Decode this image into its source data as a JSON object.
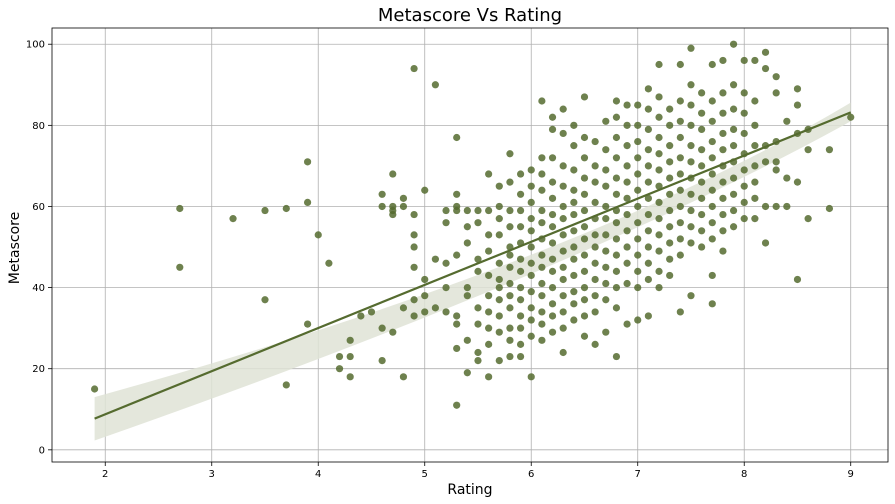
{
  "chart_data": {
    "type": "scatter",
    "title": "Metascore Vs Rating",
    "xlabel": "Rating",
    "ylabel": "Metascore",
    "xlim": [
      1.5,
      9.35
    ],
    "ylim": [
      -3,
      104
    ],
    "xticks": [
      2,
      3,
      4,
      5,
      6,
      7,
      8,
      9
    ],
    "yticks": [
      0,
      20,
      40,
      60,
      80,
      100
    ],
    "grid": true,
    "point_color": "#556b2f",
    "line_color": "#556b2f",
    "ci_color": "#dfe3d6",
    "regression": {
      "x_start": 1.9,
      "y_start": 7.7,
      "x_end": 9.0,
      "y_end": 83.2,
      "ci_start": [
        2.3,
        13.0
      ],
      "ci_mid": [
        44.6,
        46.4
      ],
      "ci_end": [
        81.0,
        85.6
      ],
      "x_mid": 6.5
    },
    "points": [
      [
        1.9,
        15
      ],
      [
        2.7,
        59.5
      ],
      [
        2.7,
        45
      ],
      [
        3.2,
        57
      ],
      [
        3.5,
        59
      ],
      [
        3.5,
        37
      ],
      [
        3.7,
        59.5
      ],
      [
        3.7,
        16
      ],
      [
        3.9,
        71
      ],
      [
        3.9,
        61
      ],
      [
        3.9,
        31
      ],
      [
        4.0,
        53
      ],
      [
        4.1,
        46
      ],
      [
        4.2,
        23
      ],
      [
        4.2,
        20
      ],
      [
        4.3,
        27
      ],
      [
        4.3,
        23
      ],
      [
        4.3,
        18
      ],
      [
        4.4,
        33
      ],
      [
        4.5,
        34
      ],
      [
        4.6,
        63
      ],
      [
        4.6,
        60
      ],
      [
        4.6,
        30
      ],
      [
        4.6,
        22
      ],
      [
        4.7,
        68
      ],
      [
        4.7,
        60
      ],
      [
        4.7,
        59
      ],
      [
        4.7,
        58
      ],
      [
        4.7,
        29
      ],
      [
        4.8,
        62
      ],
      [
        4.8,
        60
      ],
      [
        4.8,
        35
      ],
      [
        4.8,
        18
      ],
      [
        4.9,
        94
      ],
      [
        4.9,
        58
      ],
      [
        4.9,
        53
      ],
      [
        4.9,
        50
      ],
      [
        4.9,
        45
      ],
      [
        4.9,
        37
      ],
      [
        4.9,
        33
      ],
      [
        5.0,
        64
      ],
      [
        5.0,
        42
      ],
      [
        5.0,
        38
      ],
      [
        5.0,
        34
      ],
      [
        5.1,
        90
      ],
      [
        5.1,
        47
      ],
      [
        5.1,
        35
      ],
      [
        5.2,
        59
      ],
      [
        5.2,
        56
      ],
      [
        5.2,
        46
      ],
      [
        5.2,
        40
      ],
      [
        5.2,
        34
      ],
      [
        5.3,
        77
      ],
      [
        5.3,
        63
      ],
      [
        5.3,
        60
      ],
      [
        5.3,
        59
      ],
      [
        5.3,
        48
      ],
      [
        5.3,
        33
      ],
      [
        5.3,
        31
      ],
      [
        5.3,
        25
      ],
      [
        5.3,
        11
      ],
      [
        5.4,
        59
      ],
      [
        5.4,
        55
      ],
      [
        5.4,
        51
      ],
      [
        5.4,
        40
      ],
      [
        5.4,
        38
      ],
      [
        5.4,
        27
      ],
      [
        5.4,
        19
      ],
      [
        5.5,
        59
      ],
      [
        5.5,
        56
      ],
      [
        5.5,
        47
      ],
      [
        5.5,
        44
      ],
      [
        5.5,
        35
      ],
      [
        5.5,
        31
      ],
      [
        5.5,
        24
      ],
      [
        5.5,
        22
      ],
      [
        5.6,
        68
      ],
      [
        5.6,
        59
      ],
      [
        5.6,
        53
      ],
      [
        5.6,
        49
      ],
      [
        5.6,
        43
      ],
      [
        5.6,
        38
      ],
      [
        5.6,
        34
      ],
      [
        5.6,
        30
      ],
      [
        5.6,
        26
      ],
      [
        5.6,
        18
      ],
      [
        5.7,
        65
      ],
      [
        5.7,
        60
      ],
      [
        5.7,
        57
      ],
      [
        5.7,
        53
      ],
      [
        5.7,
        46
      ],
      [
        5.7,
        42
      ],
      [
        5.7,
        40
      ],
      [
        5.7,
        37
      ],
      [
        5.7,
        33
      ],
      [
        5.7,
        29
      ],
      [
        5.7,
        22
      ],
      [
        5.8,
        73
      ],
      [
        5.8,
        66
      ],
      [
        5.8,
        59
      ],
      [
        5.8,
        55
      ],
      [
        5.8,
        50
      ],
      [
        5.8,
        48
      ],
      [
        5.8,
        45
      ],
      [
        5.8,
        41
      ],
      [
        5.8,
        38
      ],
      [
        5.8,
        35
      ],
      [
        5.8,
        30
      ],
      [
        5.8,
        27
      ],
      [
        5.8,
        23
      ],
      [
        5.9,
        68
      ],
      [
        5.9,
        63
      ],
      [
        5.9,
        59
      ],
      [
        5.9,
        55
      ],
      [
        5.9,
        51
      ],
      [
        5.9,
        47
      ],
      [
        5.9,
        44
      ],
      [
        5.9,
        40
      ],
      [
        5.9,
        37
      ],
      [
        5.9,
        33
      ],
      [
        5.9,
        30
      ],
      [
        5.9,
        26
      ],
      [
        5.9,
        23
      ],
      [
        6.0,
        69
      ],
      [
        6.0,
        65
      ],
      [
        6.0,
        61
      ],
      [
        6.0,
        57
      ],
      [
        6.0,
        54
      ],
      [
        6.0,
        50
      ],
      [
        6.0,
        46
      ],
      [
        6.0,
        43
      ],
      [
        6.0,
        39
      ],
      [
        6.0,
        35
      ],
      [
        6.0,
        32
      ],
      [
        6.0,
        28
      ],
      [
        6.0,
        18
      ],
      [
        6.1,
        86
      ],
      [
        6.1,
        72
      ],
      [
        6.1,
        68
      ],
      [
        6.1,
        64
      ],
      [
        6.1,
        59
      ],
      [
        6.1,
        56
      ],
      [
        6.1,
        52
      ],
      [
        6.1,
        48
      ],
      [
        6.1,
        45
      ],
      [
        6.1,
        41
      ],
      [
        6.1,
        38
      ],
      [
        6.1,
        34
      ],
      [
        6.1,
        31
      ],
      [
        6.1,
        27
      ],
      [
        6.2,
        82
      ],
      [
        6.2,
        79
      ],
      [
        6.2,
        72
      ],
      [
        6.2,
        66
      ],
      [
        6.2,
        62
      ],
      [
        6.2,
        58
      ],
      [
        6.2,
        55
      ],
      [
        6.2,
        51
      ],
      [
        6.2,
        47
      ],
      [
        6.2,
        44
      ],
      [
        6.2,
        40
      ],
      [
        6.2,
        36
      ],
      [
        6.2,
        33
      ],
      [
        6.2,
        29
      ],
      [
        6.3,
        84
      ],
      [
        6.3,
        78
      ],
      [
        6.3,
        70
      ],
      [
        6.3,
        65
      ],
      [
        6.3,
        60
      ],
      [
        6.3,
        57
      ],
      [
        6.3,
        53
      ],
      [
        6.3,
        49
      ],
      [
        6.3,
        45
      ],
      [
        6.3,
        42
      ],
      [
        6.3,
        38
      ],
      [
        6.3,
        34
      ],
      [
        6.3,
        30
      ],
      [
        6.3,
        24
      ],
      [
        6.4,
        80
      ],
      [
        6.4,
        75
      ],
      [
        6.4,
        69
      ],
      [
        6.4,
        64
      ],
      [
        6.4,
        61
      ],
      [
        6.4,
        58
      ],
      [
        6.4,
        54
      ],
      [
        6.4,
        50
      ],
      [
        6.4,
        47
      ],
      [
        6.4,
        43
      ],
      [
        6.4,
        39
      ],
      [
        6.4,
        36
      ],
      [
        6.4,
        32
      ],
      [
        6.5,
        87
      ],
      [
        6.5,
        77
      ],
      [
        6.5,
        72
      ],
      [
        6.5,
        67
      ],
      [
        6.5,
        63
      ],
      [
        6.5,
        59
      ],
      [
        6.5,
        55
      ],
      [
        6.5,
        52
      ],
      [
        6.5,
        48
      ],
      [
        6.5,
        44
      ],
      [
        6.5,
        40
      ],
      [
        6.5,
        37
      ],
      [
        6.5,
        33
      ],
      [
        6.5,
        28
      ],
      [
        6.6,
        76
      ],
      [
        6.6,
        70
      ],
      [
        6.6,
        66
      ],
      [
        6.6,
        61
      ],
      [
        6.6,
        57
      ],
      [
        6.6,
        53
      ],
      [
        6.6,
        50
      ],
      [
        6.6,
        46
      ],
      [
        6.6,
        42
      ],
      [
        6.6,
        38
      ],
      [
        6.6,
        34
      ],
      [
        6.6,
        26
      ],
      [
        6.7,
        81
      ],
      [
        6.7,
        74
      ],
      [
        6.7,
        69
      ],
      [
        6.7,
        65
      ],
      [
        6.7,
        60
      ],
      [
        6.7,
        57
      ],
      [
        6.7,
        53
      ],
      [
        6.7,
        49
      ],
      [
        6.7,
        45
      ],
      [
        6.7,
        41
      ],
      [
        6.7,
        37
      ],
      [
        6.7,
        29
      ],
      [
        6.8,
        86
      ],
      [
        6.8,
        82
      ],
      [
        6.8,
        77
      ],
      [
        6.8,
        72
      ],
      [
        6.8,
        67
      ],
      [
        6.8,
        63
      ],
      [
        6.8,
        59
      ],
      [
        6.8,
        56
      ],
      [
        6.8,
        52
      ],
      [
        6.8,
        48
      ],
      [
        6.8,
        44
      ],
      [
        6.8,
        40
      ],
      [
        6.8,
        35
      ],
      [
        6.8,
        23
      ],
      [
        6.9,
        85
      ],
      [
        6.9,
        80
      ],
      [
        6.9,
        75
      ],
      [
        6.9,
        70
      ],
      [
        6.9,
        66
      ],
      [
        6.9,
        62
      ],
      [
        6.9,
        58
      ],
      [
        6.9,
        54
      ],
      [
        6.9,
        50
      ],
      [
        6.9,
        46
      ],
      [
        6.9,
        41
      ],
      [
        6.9,
        31
      ],
      [
        7.0,
        85
      ],
      [
        7.0,
        80
      ],
      [
        7.0,
        76
      ],
      [
        7.0,
        72
      ],
      [
        7.0,
        68
      ],
      [
        7.0,
        64
      ],
      [
        7.0,
        60
      ],
      [
        7.0,
        56
      ],
      [
        7.0,
        52
      ],
      [
        7.0,
        48
      ],
      [
        7.0,
        44
      ],
      [
        7.0,
        40
      ],
      [
        7.0,
        32
      ],
      [
        7.1,
        89
      ],
      [
        7.1,
        84
      ],
      [
        7.1,
        79
      ],
      [
        7.1,
        74
      ],
      [
        7.1,
        70
      ],
      [
        7.1,
        66
      ],
      [
        7.1,
        62
      ],
      [
        7.1,
        58
      ],
      [
        7.1,
        54
      ],
      [
        7.1,
        50
      ],
      [
        7.1,
        46
      ],
      [
        7.1,
        42
      ],
      [
        7.1,
        33
      ],
      [
        7.2,
        95
      ],
      [
        7.2,
        87
      ],
      [
        7.2,
        82
      ],
      [
        7.2,
        77
      ],
      [
        7.2,
        73
      ],
      [
        7.2,
        69
      ],
      [
        7.2,
        65
      ],
      [
        7.2,
        61
      ],
      [
        7.2,
        57
      ],
      [
        7.2,
        53
      ],
      [
        7.2,
        49
      ],
      [
        7.2,
        44
      ],
      [
        7.2,
        40
      ],
      [
        7.3,
        84
      ],
      [
        7.3,
        80
      ],
      [
        7.3,
        75
      ],
      [
        7.3,
        71
      ],
      [
        7.3,
        67
      ],
      [
        7.3,
        63
      ],
      [
        7.3,
        59
      ],
      [
        7.3,
        55
      ],
      [
        7.3,
        51
      ],
      [
        7.3,
        47
      ],
      [
        7.3,
        43
      ],
      [
        7.4,
        95
      ],
      [
        7.4,
        86
      ],
      [
        7.4,
        81
      ],
      [
        7.4,
        77
      ],
      [
        7.4,
        72
      ],
      [
        7.4,
        68
      ],
      [
        7.4,
        64
      ],
      [
        7.4,
        60
      ],
      [
        7.4,
        56
      ],
      [
        7.4,
        52
      ],
      [
        7.4,
        48
      ],
      [
        7.4,
        34
      ],
      [
        7.5,
        99
      ],
      [
        7.5,
        90
      ],
      [
        7.5,
        85
      ],
      [
        7.5,
        80
      ],
      [
        7.5,
        75
      ],
      [
        7.5,
        71
      ],
      [
        7.5,
        67
      ],
      [
        7.5,
        63
      ],
      [
        7.5,
        59
      ],
      [
        7.5,
        55
      ],
      [
        7.5,
        51
      ],
      [
        7.5,
        38
      ],
      [
        7.6,
        88
      ],
      [
        7.6,
        83
      ],
      [
        7.6,
        79
      ],
      [
        7.6,
        74
      ],
      [
        7.6,
        70
      ],
      [
        7.6,
        66
      ],
      [
        7.6,
        62
      ],
      [
        7.6,
        58
      ],
      [
        7.6,
        54
      ],
      [
        7.6,
        50
      ],
      [
        7.7,
        95
      ],
      [
        7.7,
        86
      ],
      [
        7.7,
        81
      ],
      [
        7.7,
        76
      ],
      [
        7.7,
        72
      ],
      [
        7.7,
        68
      ],
      [
        7.7,
        64
      ],
      [
        7.7,
        60
      ],
      [
        7.7,
        56
      ],
      [
        7.7,
        52
      ],
      [
        7.7,
        43
      ],
      [
        7.7,
        36
      ],
      [
        7.8,
        96
      ],
      [
        7.8,
        88
      ],
      [
        7.8,
        83
      ],
      [
        7.8,
        78
      ],
      [
        7.8,
        74
      ],
      [
        7.8,
        70
      ],
      [
        7.8,
        66
      ],
      [
        7.8,
        62
      ],
      [
        7.8,
        58
      ],
      [
        7.8,
        54
      ],
      [
        7.8,
        49
      ],
      [
        7.9,
        100
      ],
      [
        7.9,
        90
      ],
      [
        7.9,
        84
      ],
      [
        7.9,
        79
      ],
      [
        7.9,
        75
      ],
      [
        7.9,
        71
      ],
      [
        7.9,
        67
      ],
      [
        7.9,
        63
      ],
      [
        7.9,
        59
      ],
      [
        7.9,
        55
      ],
      [
        8.0,
        96
      ],
      [
        8.0,
        88
      ],
      [
        8.0,
        83
      ],
      [
        8.0,
        78
      ],
      [
        8.0,
        73
      ],
      [
        8.0,
        69
      ],
      [
        8.0,
        65
      ],
      [
        8.0,
        61
      ],
      [
        8.0,
        57
      ],
      [
        8.1,
        96
      ],
      [
        8.1,
        86
      ],
      [
        8.1,
        80
      ],
      [
        8.1,
        75
      ],
      [
        8.1,
        70
      ],
      [
        8.1,
        66
      ],
      [
        8.1,
        62
      ],
      [
        8.1,
        57
      ],
      [
        8.2,
        98
      ],
      [
        8.2,
        94
      ],
      [
        8.2,
        75
      ],
      [
        8.2,
        71
      ],
      [
        8.2,
        60
      ],
      [
        8.2,
        51
      ],
      [
        8.3,
        92
      ],
      [
        8.3,
        88
      ],
      [
        8.3,
        76
      ],
      [
        8.3,
        71
      ],
      [
        8.3,
        69
      ],
      [
        8.3,
        60
      ],
      [
        8.4,
        81
      ],
      [
        8.4,
        67
      ],
      [
        8.4,
        60
      ],
      [
        8.5,
        89
      ],
      [
        8.5,
        85
      ],
      [
        8.5,
        78
      ],
      [
        8.5,
        66
      ],
      [
        8.5,
        42
      ],
      [
        8.6,
        79
      ],
      [
        8.6,
        74
      ],
      [
        8.6,
        57
      ],
      [
        8.8,
        74
      ],
      [
        8.8,
        59.5
      ],
      [
        9.0,
        82
      ]
    ]
  }
}
